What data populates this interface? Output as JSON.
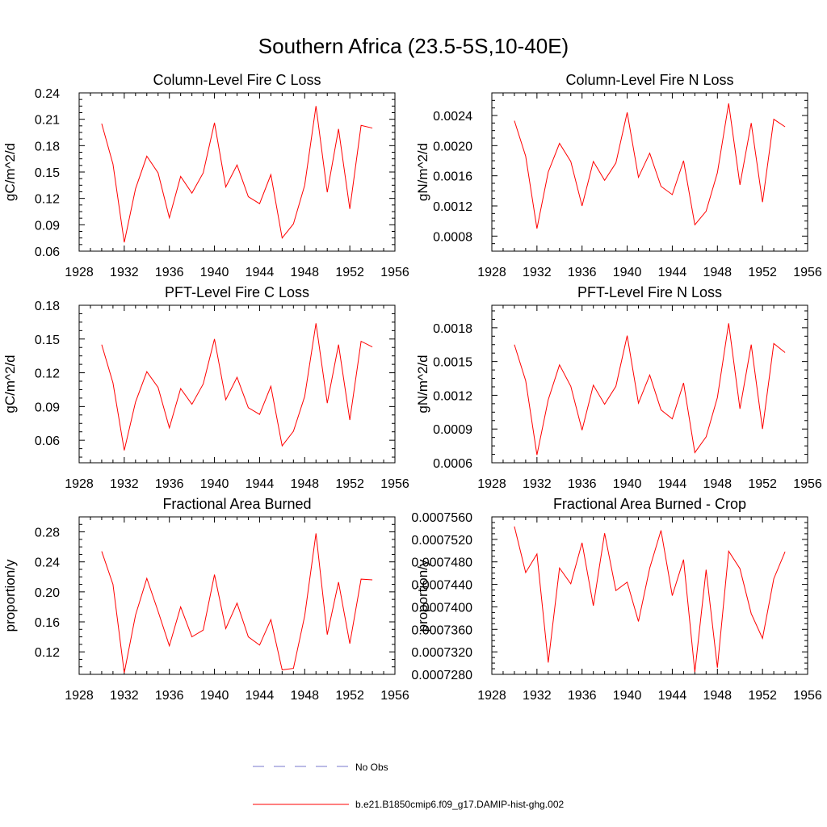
{
  "page_title": "Southern Africa (23.5-5S,10-40E)",
  "series_color": "#ff0000",
  "obs_color": "#7777cc",
  "legend": {
    "obs_label": "No Obs",
    "model_label": "b.e21.B1850cmip6.f09_g17.DAMIP-hist-ghg.002"
  },
  "chart_data": [
    {
      "type": "line",
      "title": "Column-Level Fire C Loss",
      "ylabel": "gC/m^2/d",
      "xlim": [
        1928,
        1956
      ],
      "x_ticks": [
        1928,
        1932,
        1936,
        1940,
        1944,
        1948,
        1952,
        1956
      ],
      "ylim": [
        0.06,
        0.24
      ],
      "y_ticks": [
        "0.06",
        "0.09",
        "0.12",
        "0.15",
        "0.18",
        "0.21",
        "0.24"
      ],
      "x": [
        1930,
        1931,
        1932,
        1933,
        1934,
        1935,
        1936,
        1937,
        1938,
        1939,
        1940,
        1941,
        1942,
        1943,
        1944,
        1945,
        1946,
        1947,
        1948,
        1949,
        1950,
        1951,
        1952,
        1953,
        1954
      ],
      "series": [
        {
          "values": [
            0.205,
            0.159,
            0.07,
            0.131,
            0.168,
            0.149,
            0.098,
            0.145,
            0.126,
            0.149,
            0.206,
            0.133,
            0.158,
            0.122,
            0.114,
            0.147,
            0.075,
            0.091,
            0.135,
            0.225,
            0.127,
            0.199,
            0.108,
            0.203,
            0.2
          ]
        }
      ]
    },
    {
      "type": "line",
      "title": "Column-Level Fire N Loss",
      "ylabel": "gN/m^2/d",
      "xlim": [
        1928,
        1956
      ],
      "x_ticks": [
        1928,
        1932,
        1936,
        1940,
        1944,
        1948,
        1952,
        1956
      ],
      "ylim": [
        0.0006,
        0.0027
      ],
      "y_ticks": [
        "0.0008",
        "0.0012",
        "0.0016",
        "0.0020",
        "0.0024"
      ],
      "x": [
        1930,
        1931,
        1932,
        1933,
        1934,
        1935,
        1936,
        1937,
        1938,
        1939,
        1940,
        1941,
        1942,
        1943,
        1944,
        1945,
        1946,
        1947,
        1948,
        1949,
        1950,
        1951,
        1952,
        1953,
        1954
      ],
      "series": [
        {
          "values": [
            0.00233,
            0.00186,
            0.0009,
            0.00165,
            0.00203,
            0.00179,
            0.0012,
            0.00179,
            0.00154,
            0.00177,
            0.00244,
            0.00158,
            0.0019,
            0.00146,
            0.00135,
            0.0018,
            0.00095,
            0.00113,
            0.00164,
            0.00256,
            0.00148,
            0.0023,
            0.00125,
            0.00235,
            0.00225
          ]
        }
      ]
    },
    {
      "type": "line",
      "title": "PFT-Level Fire C Loss",
      "ylabel": "gC/m^2/d",
      "xlim": [
        1928,
        1956
      ],
      "x_ticks": [
        1928,
        1932,
        1936,
        1940,
        1944,
        1948,
        1952,
        1956
      ],
      "ylim": [
        0.04,
        0.18
      ],
      "y_ticks": [
        "0.06",
        "0.09",
        "0.12",
        "0.15",
        "0.18"
      ],
      "x": [
        1930,
        1931,
        1932,
        1933,
        1934,
        1935,
        1936,
        1937,
        1938,
        1939,
        1940,
        1941,
        1942,
        1943,
        1944,
        1945,
        1946,
        1947,
        1948,
        1949,
        1950,
        1951,
        1952,
        1953,
        1954
      ],
      "series": [
        {
          "values": [
            0.145,
            0.111,
            0.051,
            0.094,
            0.121,
            0.107,
            0.071,
            0.106,
            0.092,
            0.11,
            0.15,
            0.096,
            0.116,
            0.089,
            0.083,
            0.108,
            0.055,
            0.068,
            0.099,
            0.164,
            0.093,
            0.145,
            0.078,
            0.148,
            0.143
          ]
        }
      ]
    },
    {
      "type": "line",
      "title": "PFT-Level Fire N Loss",
      "ylabel": "gN/m^2/d",
      "xlim": [
        1928,
        1956
      ],
      "x_ticks": [
        1928,
        1932,
        1936,
        1940,
        1944,
        1948,
        1952,
        1956
      ],
      "ylim": [
        0.0006,
        0.002
      ],
      "y_ticks": [
        "0.0006",
        "0.0009",
        "0.0012",
        "0.0015",
        "0.0018"
      ],
      "x": [
        1930,
        1931,
        1932,
        1933,
        1934,
        1935,
        1936,
        1937,
        1938,
        1939,
        1940,
        1941,
        1942,
        1943,
        1944,
        1945,
        1946,
        1947,
        1948,
        1949,
        1950,
        1951,
        1952,
        1953,
        1954
      ],
      "series": [
        {
          "values": [
            0.00165,
            0.00133,
            0.00067,
            0.00116,
            0.00147,
            0.00128,
            0.00089,
            0.00129,
            0.00112,
            0.00128,
            0.00173,
            0.00113,
            0.00138,
            0.00107,
            0.00099,
            0.00131,
            0.00069,
            0.00083,
            0.00118,
            0.00184,
            0.00108,
            0.00165,
            0.0009,
            0.00166,
            0.00158
          ]
        }
      ]
    },
    {
      "type": "line",
      "title": "Fractional Area Burned",
      "ylabel": "proportion/y",
      "xlim": [
        1928,
        1956
      ],
      "x_ticks": [
        1928,
        1932,
        1936,
        1940,
        1944,
        1948,
        1952,
        1956
      ],
      "ylim": [
        0.09,
        0.3
      ],
      "y_ticks": [
        "0.12",
        "0.16",
        "0.20",
        "0.24",
        "0.28"
      ],
      "x": [
        1930,
        1931,
        1932,
        1933,
        1934,
        1935,
        1936,
        1937,
        1938,
        1939,
        1940,
        1941,
        1942,
        1943,
        1944,
        1945,
        1946,
        1947,
        1948,
        1949,
        1950,
        1951,
        1952,
        1953,
        1954
      ],
      "series": [
        {
          "values": [
            0.254,
            0.21,
            0.092,
            0.169,
            0.218,
            0.174,
            0.128,
            0.18,
            0.14,
            0.149,
            0.223,
            0.151,
            0.185,
            0.14,
            0.129,
            0.163,
            0.096,
            0.098,
            0.168,
            0.278,
            0.143,
            0.213,
            0.131,
            0.217,
            0.216
          ]
        }
      ]
    },
    {
      "type": "line",
      "title": "Fractional Area Burned - Crop",
      "ylabel": "proportion/y",
      "xlim": [
        1928,
        1956
      ],
      "x_ticks": [
        1928,
        1932,
        1936,
        1940,
        1944,
        1948,
        1952,
        1956
      ],
      "ylim": [
        0.000728,
        0.000756
      ],
      "y_ticks": [
        "0.0007280",
        "0.0007320",
        "0.0007360",
        "0.0007400",
        "0.0007440",
        "0.0007480",
        "0.0007520",
        "0.0007560"
      ],
      "x": [
        1930,
        1931,
        1932,
        1933,
        1934,
        1935,
        1936,
        1937,
        1938,
        1939,
        1940,
        1941,
        1942,
        1943,
        1944,
        1945,
        1946,
        1947,
        1948,
        1949,
        1950,
        1951,
        1952,
        1953,
        1954
      ],
      "series": [
        {
          "values": [
            0.0007543,
            0.0007461,
            0.0007494,
            0.0007301,
            0.0007469,
            0.0007441,
            0.0007514,
            0.0007402,
            0.0007531,
            0.0007429,
            0.0007444,
            0.0007374,
            0.0007469,
            0.0007536,
            0.000742,
            0.0007484,
            0.0007284,
            0.0007466,
            0.0007292,
            0.0007499,
            0.0007468,
            0.0007388,
            0.0007344,
            0.000745,
            0.0007498
          ]
        }
      ]
    }
  ]
}
